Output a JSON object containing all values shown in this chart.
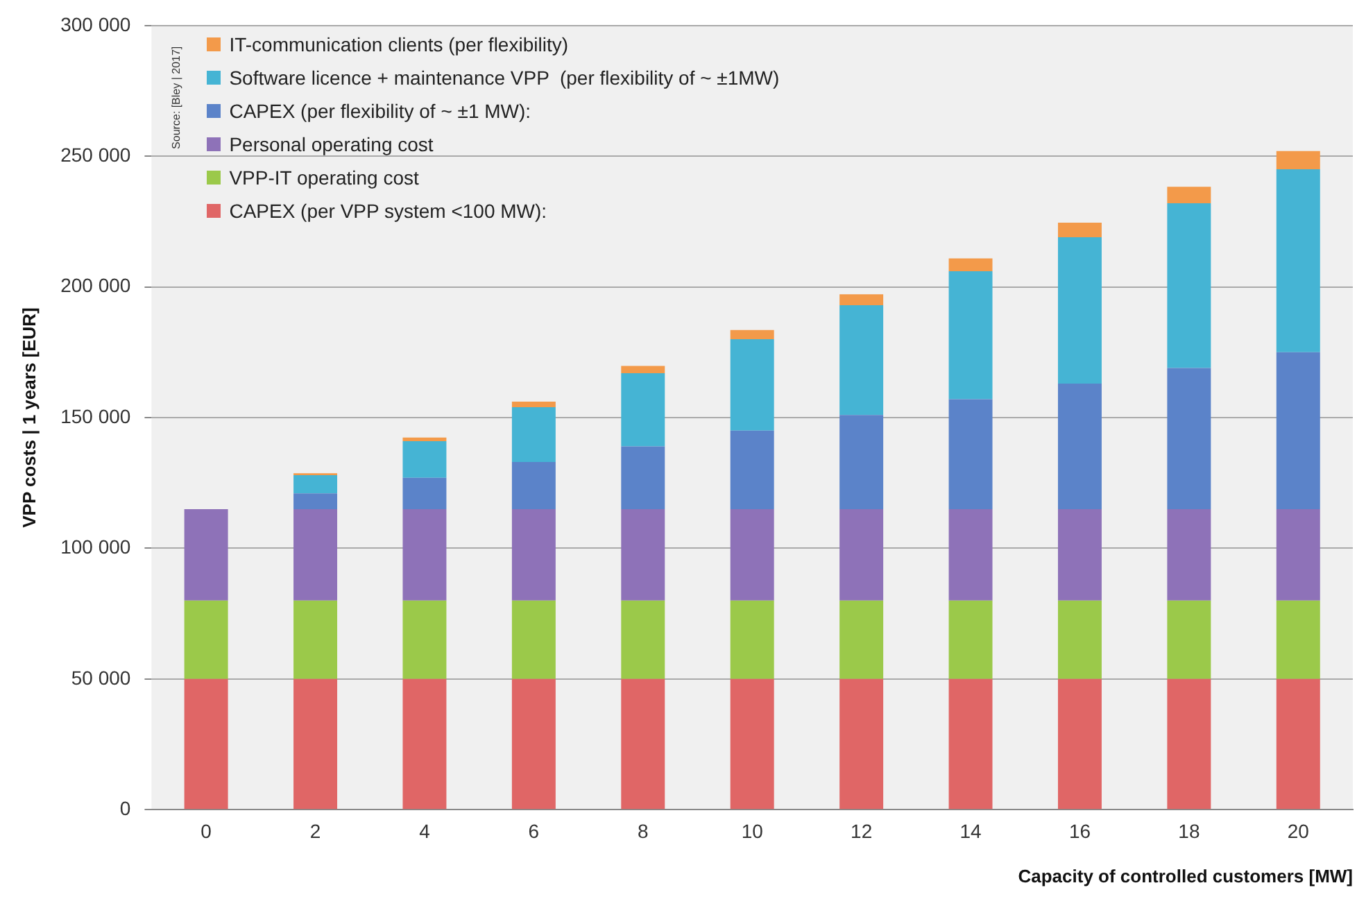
{
  "chart_data": {
    "type": "bar",
    "stacked": true,
    "categories": [
      "0",
      "2",
      "4",
      "6",
      "8",
      "10",
      "12",
      "14",
      "16",
      "18",
      "20"
    ],
    "series": [
      {
        "name": "CAPEX (per VPP system <100 MW):",
        "color": "#e06666",
        "values": [
          50000,
          50000,
          50000,
          50000,
          50000,
          50000,
          50000,
          50000,
          50000,
          50000,
          50000
        ]
      },
      {
        "name": "VPP-IT operating cost",
        "color": "#9bc94a",
        "values": [
          30000,
          30000,
          30000,
          30000,
          30000,
          30000,
          30000,
          30000,
          30000,
          30000,
          30000
        ]
      },
      {
        "name": "Personal operating cost",
        "color": "#8e72b8",
        "values": [
          35000,
          35000,
          35000,
          35000,
          35000,
          35000,
          35000,
          35000,
          35000,
          35000,
          35000
        ]
      },
      {
        "name": "CAPEX (per flexibility of ~ ±1 MW):",
        "color": "#5b83c9",
        "values": [
          0,
          6000,
          12000,
          18000,
          24000,
          30000,
          36000,
          42000,
          48000,
          54000,
          60000
        ]
      },
      {
        "name": "Software licence + maintenance VPP  (per flexibility of ~ ±1MW)",
        "color": "#45b4d4",
        "values": [
          0,
          7000,
          14000,
          21000,
          28000,
          35000,
          42000,
          49000,
          56000,
          63000,
          70000
        ]
      },
      {
        "name": "IT-communication clients (per flexibility)",
        "color": "#f39a4a",
        "values": [
          0,
          700,
          1400,
          2100,
          2800,
          3500,
          4200,
          4900,
          5600,
          6300,
          7000
        ]
      }
    ],
    "ylim": [
      0,
      300000
    ],
    "yticks": [
      {
        "value": 0,
        "label": "0"
      },
      {
        "value": 50000,
        "label": "50 000"
      },
      {
        "value": 100000,
        "label": "100 000"
      },
      {
        "value": 150000,
        "label": "150 000"
      },
      {
        "value": 200000,
        "label": "200 000"
      },
      {
        "value": 250000,
        "label": "250 000"
      },
      {
        "value": 300000,
        "label": "300 000"
      }
    ],
    "ylabel": "VPP costs | 1 years [EUR]",
    "xlabel": "Capacity of controlled customers [MW]",
    "annotations": [
      "Source: [Bley | 2017]"
    ],
    "grid": "y",
    "legend": "top left"
  }
}
